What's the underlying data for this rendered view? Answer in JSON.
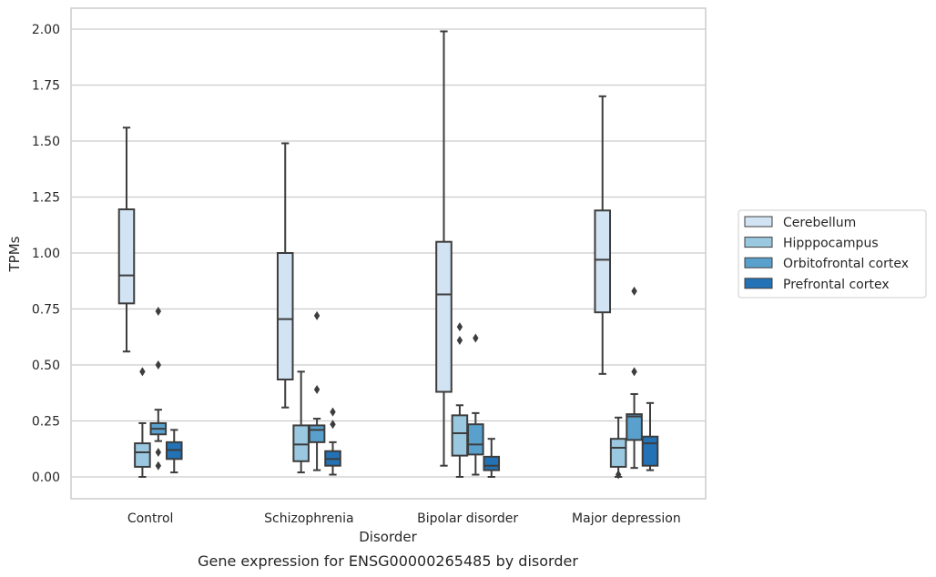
{
  "chart_data": {
    "type": "box",
    "title": "",
    "caption": "Gene expression for ENSG00000265485 by disorder",
    "xlabel": "Disorder",
    "ylabel": "TPMs",
    "ylim": [
      -0.1,
      2.09
    ],
    "yticks": [
      0.0,
      0.25,
      0.5,
      0.75,
      1.0,
      1.25,
      1.5,
      1.75,
      2.0
    ],
    "ytick_labels": [
      "0.00",
      "0.25",
      "0.50",
      "0.75",
      "1.00",
      "1.25",
      "1.50",
      "1.75",
      "2.00"
    ],
    "grid": "horizontal",
    "legend_position": "right",
    "categories": [
      "Control",
      "Schizophrenia",
      "Bipolar disorder",
      "Major depression"
    ],
    "series": [
      {
        "name": "Cerebellum",
        "color": "#d2e3f3",
        "boxes": [
          {
            "whislo": 0.56,
            "q1": 0.775,
            "med": 0.9,
            "q3": 1.195,
            "whishi": 1.56,
            "fliers": []
          },
          {
            "whislo": 0.31,
            "q1": 0.435,
            "med": 0.705,
            "q3": 1.0,
            "whishi": 1.49,
            "fliers": []
          },
          {
            "whislo": 0.05,
            "q1": 0.38,
            "med": 0.815,
            "q3": 1.05,
            "whishi": 1.99,
            "fliers": []
          },
          {
            "whislo": 0.46,
            "q1": 0.735,
            "med": 0.97,
            "q3": 1.19,
            "whishi": 1.7,
            "fliers": []
          }
        ]
      },
      {
        "name": "Hipppocampus",
        "color": "#9ac8e0",
        "boxes": [
          {
            "whislo": 0.0,
            "q1": 0.045,
            "med": 0.11,
            "q3": 0.15,
            "whishi": 0.24,
            "fliers": [
              0.47
            ]
          },
          {
            "whislo": 0.02,
            "q1": 0.07,
            "med": 0.145,
            "q3": 0.23,
            "whishi": 0.47,
            "fliers": []
          },
          {
            "whislo": 0.0,
            "q1": 0.095,
            "med": 0.195,
            "q3": 0.275,
            "whishi": 0.32,
            "fliers": [
              0.61,
              0.67
            ]
          },
          {
            "whislo": 0.0,
            "q1": 0.045,
            "med": 0.13,
            "q3": 0.17,
            "whishi": 0.265,
            "fliers": [
              0.01
            ]
          }
        ]
      },
      {
        "name": "Orbitofrontal cortex",
        "color": "#5aa0cd",
        "boxes": [
          {
            "whislo": 0.16,
            "q1": 0.19,
            "med": 0.215,
            "q3": 0.24,
            "whishi": 0.3,
            "fliers": [
              0.05,
              0.11,
              0.5,
              0.74
            ]
          },
          {
            "whislo": 0.03,
            "q1": 0.155,
            "med": 0.21,
            "q3": 0.23,
            "whishi": 0.26,
            "fliers": [
              0.39,
              0.72
            ]
          },
          {
            "whislo": 0.01,
            "q1": 0.1,
            "med": 0.145,
            "q3": 0.235,
            "whishi": 0.285,
            "fliers": [
              0.62
            ]
          },
          {
            "whislo": 0.04,
            "q1": 0.165,
            "med": 0.27,
            "q3": 0.28,
            "whishi": 0.37,
            "fliers": [
              0.47,
              0.83
            ]
          }
        ]
      },
      {
        "name": "Prefrontal cortex",
        "color": "#2372b5",
        "boxes": [
          {
            "whislo": 0.02,
            "q1": 0.08,
            "med": 0.12,
            "q3": 0.155,
            "whishi": 0.21,
            "fliers": []
          },
          {
            "whislo": 0.01,
            "q1": 0.05,
            "med": 0.08,
            "q3": 0.115,
            "whishi": 0.155,
            "fliers": [
              0.235,
              0.29
            ]
          },
          {
            "whislo": 0.0,
            "q1": 0.03,
            "med": 0.05,
            "q3": 0.09,
            "whishi": 0.17,
            "fliers": []
          },
          {
            "whislo": 0.03,
            "q1": 0.05,
            "med": 0.15,
            "q3": 0.18,
            "whishi": 0.33,
            "fliers": []
          }
        ]
      }
    ]
  }
}
